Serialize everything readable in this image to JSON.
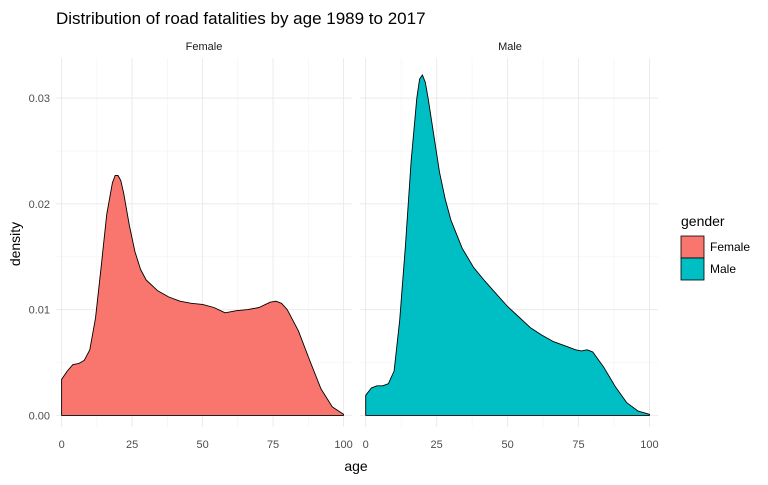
{
  "chart_data": {
    "type": "area",
    "title": "Distribution of road fatalities by age 1989 to 2017",
    "xlabel": "age",
    "ylabel": "density",
    "xlim": [
      -2,
      103
    ],
    "ylim": [
      -0.0011,
      0.0338
    ],
    "x_ticks": [
      0,
      25,
      50,
      75,
      100
    ],
    "x_tick_labels": [
      "0",
      "25",
      "50",
      "75",
      "100"
    ],
    "y_ticks": [
      0,
      0.01,
      0.02,
      0.03
    ],
    "y_tick_labels": [
      "0.00",
      "0.01",
      "0.02",
      "0.03"
    ],
    "grid": true,
    "facet_by": "gender",
    "legend": {
      "title": "gender",
      "position": "right",
      "entries": [
        {
          "label": "Female",
          "color": "#F8766D"
        },
        {
          "label": "Male",
          "color": "#00BFC4"
        }
      ]
    },
    "panels": [
      {
        "strip": "Female",
        "color": "#F8766D",
        "x": [
          0,
          2,
          4,
          6,
          8,
          10,
          12,
          14,
          16,
          18,
          19,
          20,
          21,
          22,
          24,
          26,
          28,
          30,
          34,
          38,
          42,
          46,
          50,
          54,
          58,
          62,
          66,
          70,
          74,
          76,
          78,
          80,
          84,
          88,
          92,
          96,
          100
        ],
        "values": [
          0.0034,
          0.0042,
          0.0048,
          0.0049,
          0.0052,
          0.0062,
          0.0092,
          0.014,
          0.019,
          0.022,
          0.0227,
          0.0227,
          0.0222,
          0.021,
          0.018,
          0.0155,
          0.0138,
          0.0128,
          0.0118,
          0.0112,
          0.0108,
          0.0106,
          0.0105,
          0.0102,
          0.0097,
          0.0099,
          0.01,
          0.0102,
          0.0107,
          0.0108,
          0.0106,
          0.01,
          0.008,
          0.0052,
          0.0025,
          0.0008,
          0.0001
        ]
      },
      {
        "strip": "Male",
        "color": "#00BFC4",
        "x": [
          0,
          2,
          4,
          6,
          8,
          10,
          12,
          14,
          16,
          18,
          19,
          20,
          21,
          22,
          24,
          26,
          28,
          30,
          34,
          38,
          42,
          46,
          50,
          54,
          58,
          62,
          66,
          70,
          74,
          76,
          78,
          80,
          84,
          88,
          92,
          96,
          100
        ],
        "values": [
          0.0019,
          0.0026,
          0.0028,
          0.0028,
          0.003,
          0.0042,
          0.009,
          0.016,
          0.024,
          0.03,
          0.0318,
          0.0322,
          0.0315,
          0.03,
          0.0265,
          0.023,
          0.0205,
          0.0185,
          0.0158,
          0.014,
          0.0127,
          0.0115,
          0.0103,
          0.0093,
          0.0083,
          0.0076,
          0.007,
          0.0066,
          0.0062,
          0.0061,
          0.0062,
          0.006,
          0.0045,
          0.0027,
          0.0012,
          0.0004,
          0.0001
        ]
      }
    ]
  }
}
